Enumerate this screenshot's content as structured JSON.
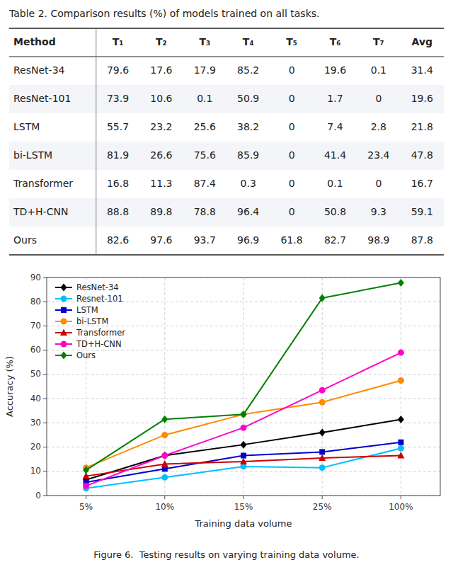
{
  "chart_data": [
    {
      "type": "table",
      "title": "Table 2. Comparison results (%) of models trained on all tasks.",
      "ylabel": "Method",
      "categories": [
        "T₁",
        "T₂",
        "T₃",
        "T₄",
        "T₅",
        "T₆",
        "T₇",
        "Avg"
      ],
      "series": [
        {
          "name": "ResNet-34",
          "values": [
            79.6,
            17.6,
            17.9,
            85.2,
            0,
            19.6,
            0.1,
            31.4
          ]
        },
        {
          "name": "ResNet-101",
          "values": [
            73.9,
            10.6,
            0.1,
            50.9,
            0,
            1.7,
            0,
            19.6
          ]
        },
        {
          "name": "LSTM",
          "values": [
            55.7,
            23.2,
            25.6,
            38.2,
            0,
            7.4,
            2.8,
            21.8
          ]
        },
        {
          "name": "bi-LSTM",
          "values": [
            81.9,
            26.6,
            75.6,
            85.9,
            0,
            41.4,
            23.4,
            47.8
          ]
        },
        {
          "name": "Transformer",
          "values": [
            16.8,
            11.3,
            87.4,
            0.3,
            0,
            0.1,
            0,
            16.7
          ]
        },
        {
          "name": "TD+H-CNN",
          "values": [
            88.8,
            89.8,
            78.8,
            96.4,
            0,
            50.8,
            9.3,
            59.1
          ]
        },
        {
          "name": "Ours",
          "values": [
            82.6,
            97.6,
            93.7,
            96.9,
            61.8,
            82.7,
            98.9,
            87.8
          ]
        }
      ]
    },
    {
      "type": "line",
      "title": "Figure 6.  Testing results on varying training data volume.",
      "xlabel": "Training data volume",
      "ylabel": "Accuracy (%)",
      "categories": [
        "5%",
        "10%",
        "15%",
        "25%",
        "100%"
      ],
      "series": [
        {
          "name": "ResNet-34",
          "color": "#000000",
          "marker": "diamond",
          "values": [
            6.5,
            16.5,
            21.0,
            26.0,
            31.4
          ]
        },
        {
          "name": "Resnet-101",
          "color": "#00BFFF",
          "marker": "circle",
          "values": [
            3.0,
            7.5,
            12.0,
            11.5,
            19.5
          ]
        },
        {
          "name": "LSTM",
          "color": "#0000CC",
          "marker": "square",
          "values": [
            5.5,
            11.0,
            16.5,
            18.0,
            22.0
          ]
        },
        {
          "name": "bi-LSTM",
          "color": "#FF8C00",
          "marker": "circle",
          "values": [
            11.5,
            25.0,
            33.5,
            38.5,
            47.5
          ]
        },
        {
          "name": "Transformer",
          "color": "#CC0000",
          "marker": "triangle",
          "values": [
            8.0,
            13.0,
            14.0,
            15.5,
            16.5
          ]
        },
        {
          "name": "TD+H-CNN",
          "color": "#FF00CC",
          "marker": "circle",
          "values": [
            4.0,
            16.5,
            28.0,
            43.5,
            59.0
          ]
        },
        {
          "name": "Ours",
          "color": "#008000",
          "marker": "diamond",
          "values": [
            10.5,
            31.5,
            33.5,
            81.5,
            87.8
          ]
        }
      ],
      "ylim": [
        0,
        90
      ],
      "yticks": [
        0,
        10,
        20,
        30,
        40,
        50,
        60,
        70,
        80,
        90
      ],
      "grid": true,
      "legend": "upper left"
    }
  ]
}
